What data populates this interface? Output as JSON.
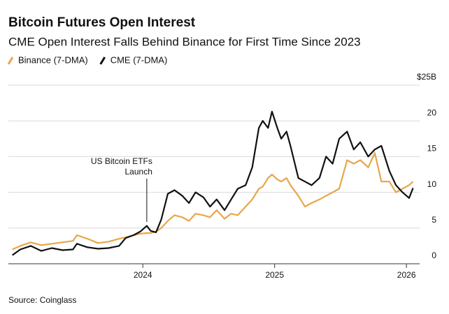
{
  "chart_data": {
    "type": "line",
    "title": "Bitcoin Futures Open Interest",
    "subtitle": "CME Open Interest Falls Behind Binance for First Time Since 2023",
    "source": "Source: Coinglass",
    "annotation": {
      "text": [
        "US Bitcoin ETFs",
        "Launch"
      ],
      "x": 2024.03
    },
    "x": [
      2023.01,
      2023.07,
      2023.15,
      2023.23,
      2023.31,
      2023.39,
      2023.47,
      2023.5,
      2023.58,
      2023.66,
      2023.74,
      2023.82,
      2023.87,
      2023.93,
      2023.98,
      2024.03,
      2024.06,
      2024.1,
      2024.14,
      2024.19,
      2024.24,
      2024.3,
      2024.35,
      2024.4,
      2024.46,
      2024.51,
      2024.56,
      2024.62,
      2024.67,
      2024.72,
      2024.78,
      2024.83,
      2024.88,
      2024.91,
      2024.95,
      2024.98,
      2025.02,
      2025.05,
      2025.09,
      2025.12,
      2025.18,
      2025.23,
      2025.28,
      2025.34,
      2025.39,
      2025.44,
      2025.49,
      2025.55,
      2025.6,
      2025.65,
      2025.71,
      2025.76,
      2025.81,
      2025.87,
      2025.92,
      2025.97,
      2026.02,
      2026.05
    ],
    "series": [
      {
        "name": "Binance (7-DMA)",
        "color": "#e8a64a",
        "values": [
          2.0,
          2.5,
          3.0,
          2.6,
          2.8,
          3.0,
          3.2,
          4.0,
          3.5,
          2.9,
          3.1,
          3.5,
          3.7,
          4.0,
          4.2,
          4.3,
          4.3,
          4.5,
          5.0,
          6.0,
          6.8,
          6.5,
          6.0,
          7.0,
          6.8,
          6.5,
          7.5,
          6.3,
          7.0,
          6.8,
          8.0,
          9.0,
          10.5,
          10.8,
          12.0,
          12.5,
          11.8,
          11.5,
          12.0,
          11.0,
          9.5,
          8.0,
          8.5,
          9.0,
          9.5,
          10.0,
          10.5,
          14.5,
          14.0,
          14.5,
          13.5,
          15.5,
          11.5,
          11.5,
          10.0,
          10.5,
          11.0,
          11.5
        ]
      },
      {
        "name": "CME (7-DMA)",
        "color": "#111111",
        "values": [
          1.2,
          2.0,
          2.5,
          1.8,
          2.2,
          1.9,
          2.0,
          2.8,
          2.3,
          2.1,
          2.2,
          2.5,
          3.6,
          4.0,
          4.5,
          5.3,
          4.6,
          4.4,
          6.2,
          9.8,
          10.3,
          9.5,
          8.5,
          10.0,
          9.3,
          8.0,
          9.0,
          7.5,
          9.0,
          10.5,
          11.0,
          13.5,
          19.0,
          20.0,
          19.0,
          21.3,
          19.0,
          17.5,
          18.5,
          16.5,
          12.0,
          11.5,
          11.0,
          12.0,
          15.0,
          14.0,
          17.5,
          18.5,
          16.0,
          17.0,
          15.0,
          16.0,
          16.5,
          13.0,
          11.0,
          10.0,
          9.2,
          10.6
        ]
      }
    ],
    "xlim": [
      2022.98,
      2026.1
    ],
    "xticks": [
      2024,
      2025,
      2026
    ],
    "ylim": [
      0,
      25
    ],
    "yticks": [
      0,
      5,
      10,
      15,
      20,
      {
        "value": 25,
        "label": "$25B"
      }
    ],
    "grid": true
  }
}
